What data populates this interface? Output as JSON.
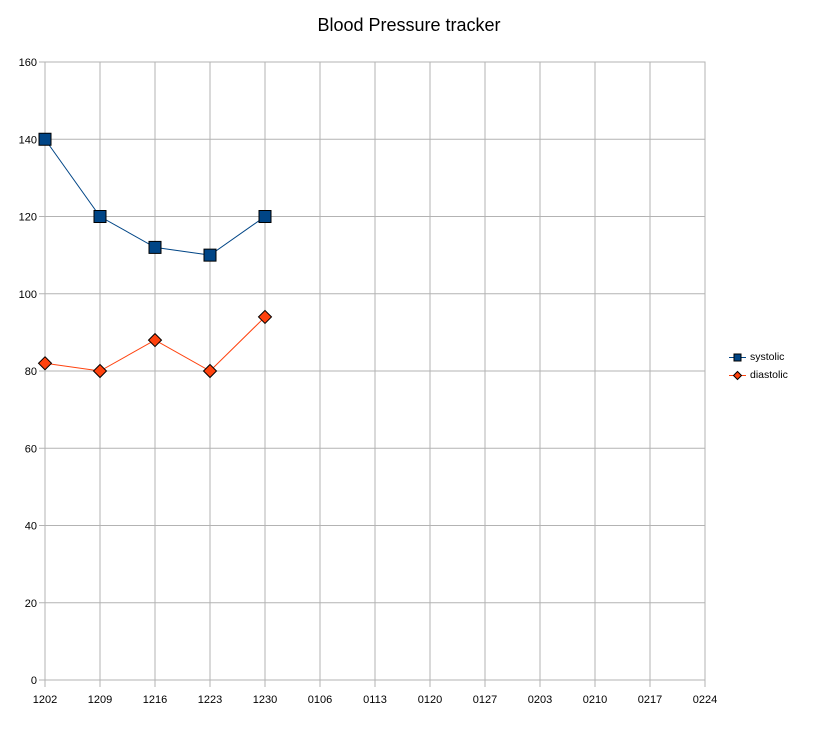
{
  "title": "Blood Pressure tracker",
  "chart_data": {
    "type": "line",
    "title": "Blood Pressure tracker",
    "categories": [
      "1202",
      "1209",
      "1216",
      "1223",
      "1230",
      "0106",
      "0113",
      "0120",
      "0127",
      "0203",
      "0210",
      "0217",
      "0224"
    ],
    "series": [
      {
        "name": "systolic",
        "color": "#004586",
        "marker": "square",
        "values": [
          140,
          120,
          112,
          110,
          120
        ]
      },
      {
        "name": "diastolic",
        "color": "#FF420E",
        "marker": "diamond",
        "values": [
          82,
          80,
          88,
          80,
          94
        ]
      }
    ],
    "xlabel": "",
    "ylabel": "",
    "ylim": [
      0,
      160
    ],
    "ytick_step": 20,
    "grid": true,
    "legend_position": "right"
  },
  "colors": {
    "grid": "#b3b3b3",
    "marker_outline": "#000000",
    "text": "#000000",
    "background": "#ffffff"
  }
}
